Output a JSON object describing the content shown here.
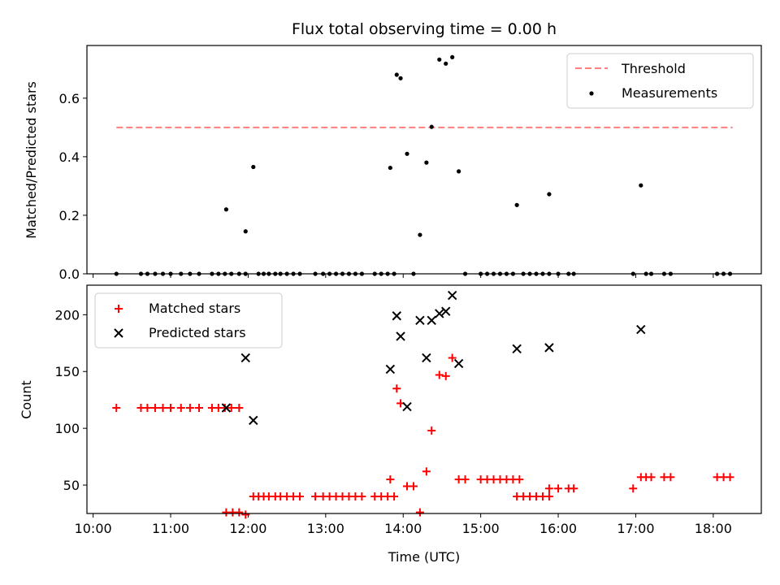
{
  "chart_data": [
    {
      "type": "scatter",
      "title": "Flux total observing time = 0.00 h",
      "ylabel": "Matched/Predicted stars",
      "ylim": [
        0,
        0.78
      ],
      "yticks": [
        0.0,
        0.2,
        0.4,
        0.6
      ],
      "ytick_labels": [
        "0.0",
        "0.2",
        "0.4",
        "0.6"
      ],
      "xlim_hours": [
        9.92,
        18.62
      ],
      "legend": "top-right",
      "threshold": {
        "name": "Threshold",
        "value": 0.5,
        "x_range": [
          "10:18",
          "18:15"
        ],
        "color": "#ff7f7f",
        "style": "dashed"
      },
      "measurements": {
        "name": "Measurements",
        "color": "#000000",
        "points": [
          [
            "10:18",
            0.0
          ],
          [
            "10:37",
            0.0
          ],
          [
            "10:42",
            0.0
          ],
          [
            "10:48",
            0.0
          ],
          [
            "10:54",
            0.0
          ],
          [
            "11:00",
            0.0
          ],
          [
            "11:08",
            0.0
          ],
          [
            "11:15",
            0.0
          ],
          [
            "11:22",
            0.0
          ],
          [
            "11:32",
            0.0
          ],
          [
            "11:37",
            0.0
          ],
          [
            "11:42",
            0.0
          ],
          [
            "11:47",
            0.0
          ],
          [
            "11:53",
            0.0
          ],
          [
            "11:58",
            0.0
          ],
          [
            "11:43",
            0.22
          ],
          [
            "11:58",
            0.145
          ],
          [
            "12:04",
            0.365
          ],
          [
            "12:08",
            0.0
          ],
          [
            "12:12",
            0.0
          ],
          [
            "12:16",
            0.0
          ],
          [
            "12:21",
            0.0
          ],
          [
            "12:25",
            0.0
          ],
          [
            "12:30",
            0.0
          ],
          [
            "12:35",
            0.0
          ],
          [
            "12:40",
            0.0
          ],
          [
            "12:52",
            0.0
          ],
          [
            "12:58",
            0.0
          ],
          [
            "13:03",
            0.0
          ],
          [
            "13:08",
            0.0
          ],
          [
            "13:13",
            0.0
          ],
          [
            "13:18",
            0.0
          ],
          [
            "13:23",
            0.0
          ],
          [
            "13:28",
            0.0
          ],
          [
            "13:38",
            0.0
          ],
          [
            "13:43",
            0.0
          ],
          [
            "13:48",
            0.0
          ],
          [
            "13:53",
            0.0
          ],
          [
            "13:50",
            0.362
          ],
          [
            "13:55",
            0.68
          ],
          [
            "13:58",
            0.668
          ],
          [
            "14:03",
            0.41
          ],
          [
            "14:08",
            0.0
          ],
          [
            "14:13",
            0.133
          ],
          [
            "14:18",
            0.38
          ],
          [
            "14:22",
            0.502
          ],
          [
            "14:28",
            0.732
          ],
          [
            "14:33",
            0.718
          ],
          [
            "14:38",
            0.74
          ],
          [
            "14:43",
            0.35
          ],
          [
            "14:48",
            0.0
          ],
          [
            "15:00",
            0.0
          ],
          [
            "15:05",
            0.0
          ],
          [
            "15:10",
            0.0
          ],
          [
            "15:15",
            0.0
          ],
          [
            "15:20",
            0.0
          ],
          [
            "15:25",
            0.0
          ],
          [
            "15:33",
            0.0
          ],
          [
            "15:38",
            0.0
          ],
          [
            "15:43",
            0.0
          ],
          [
            "15:48",
            0.0
          ],
          [
            "15:53",
            0.0
          ],
          [
            "16:00",
            0.0
          ],
          [
            "16:08",
            0.0
          ],
          [
            "16:12",
            0.0
          ],
          [
            "15:28",
            0.235
          ],
          [
            "15:53",
            0.272
          ],
          [
            "16:58",
            0.0
          ],
          [
            "17:04",
            0.302
          ],
          [
            "17:08",
            0.0
          ],
          [
            "17:12",
            0.0
          ],
          [
            "17:22",
            0.0
          ],
          [
            "17:27",
            0.0
          ],
          [
            "18:03",
            0.0
          ],
          [
            "18:08",
            0.0
          ],
          [
            "18:13",
            0.0
          ]
        ]
      }
    },
    {
      "type": "scatter",
      "xlabel": "Time (UTC)",
      "ylabel": "Count",
      "ylim": [
        25,
        226
      ],
      "yticks": [
        50,
        100,
        150,
        200
      ],
      "ytick_labels": [
        "50",
        "100",
        "150",
        "200"
      ],
      "xticks": [
        "10:00",
        "11:00",
        "12:00",
        "13:00",
        "14:00",
        "15:00",
        "16:00",
        "17:00",
        "18:00"
      ],
      "legend": "top-left",
      "series": [
        {
          "name": "Matched stars",
          "marker": "plus",
          "color": "#ff0000",
          "points": [
            [
              "10:18",
              118
            ],
            [
              "10:37",
              118
            ],
            [
              "10:42",
              118
            ],
            [
              "10:48",
              118
            ],
            [
              "10:54",
              118
            ],
            [
              "11:00",
              118
            ],
            [
              "11:08",
              118
            ],
            [
              "11:15",
              118
            ],
            [
              "11:22",
              118
            ],
            [
              "11:32",
              118
            ],
            [
              "11:37",
              118
            ],
            [
              "11:42",
              118
            ],
            [
              "11:47",
              118
            ],
            [
              "11:53",
              118
            ],
            [
              "11:43",
              26
            ],
            [
              "11:48",
              26
            ],
            [
              "11:53",
              26
            ],
            [
              "11:58",
              24
            ],
            [
              "12:04",
              40
            ],
            [
              "12:08",
              40
            ],
            [
              "12:12",
              40
            ],
            [
              "12:16",
              40
            ],
            [
              "12:21",
              40
            ],
            [
              "12:25",
              40
            ],
            [
              "12:30",
              40
            ],
            [
              "12:35",
              40
            ],
            [
              "12:40",
              40
            ],
            [
              "12:52",
              40
            ],
            [
              "12:58",
              40
            ],
            [
              "13:03",
              40
            ],
            [
              "13:08",
              40
            ],
            [
              "13:13",
              40
            ],
            [
              "13:18",
              40
            ],
            [
              "13:23",
              40
            ],
            [
              "13:28",
              40
            ],
            [
              "13:38",
              40
            ],
            [
              "13:43",
              40
            ],
            [
              "13:48",
              40
            ],
            [
              "13:53",
              40
            ],
            [
              "13:50",
              55
            ],
            [
              "13:55",
              135
            ],
            [
              "13:58",
              122
            ],
            [
              "14:03",
              49
            ],
            [
              "14:08",
              49
            ],
            [
              "14:13",
              26
            ],
            [
              "14:18",
              62
            ],
            [
              "14:22",
              98
            ],
            [
              "14:28",
              147
            ],
            [
              "14:33",
              146
            ],
            [
              "14:38",
              162
            ],
            [
              "14:43",
              55
            ],
            [
              "14:48",
              55
            ],
            [
              "15:00",
              55
            ],
            [
              "15:05",
              55
            ],
            [
              "15:10",
              55
            ],
            [
              "15:15",
              55
            ],
            [
              "15:20",
              55
            ],
            [
              "15:25",
              55
            ],
            [
              "15:30",
              55
            ],
            [
              "15:28",
              40
            ],
            [
              "15:33",
              40
            ],
            [
              "15:38",
              40
            ],
            [
              "15:43",
              40
            ],
            [
              "15:48",
              40
            ],
            [
              "15:53",
              40
            ],
            [
              "15:53",
              47
            ],
            [
              "16:00",
              47
            ],
            [
              "16:08",
              47
            ],
            [
              "16:12",
              47
            ],
            [
              "16:58",
              47
            ],
            [
              "17:04",
              57
            ],
            [
              "17:08",
              57
            ],
            [
              "17:12",
              57
            ],
            [
              "17:22",
              57
            ],
            [
              "17:27",
              57
            ],
            [
              "18:03",
              57
            ],
            [
              "18:08",
              57
            ],
            [
              "18:13",
              57
            ]
          ]
        },
        {
          "name": "Predicted stars",
          "marker": "x",
          "color": "#000000",
          "points": [
            [
              "11:43",
              118
            ],
            [
              "11:58",
              162
            ],
            [
              "12:04",
              107
            ],
            [
              "13:50",
              152
            ],
            [
              "13:55",
              199
            ],
            [
              "13:58",
              181
            ],
            [
              "14:03",
              119
            ],
            [
              "14:13",
              195
            ],
            [
              "14:18",
              162
            ],
            [
              "14:22",
              195
            ],
            [
              "14:28",
              201
            ],
            [
              "14:33",
              203
            ],
            [
              "14:38",
              217
            ],
            [
              "14:43",
              157
            ],
            [
              "15:28",
              170
            ],
            [
              "15:53",
              171
            ],
            [
              "17:04",
              187
            ]
          ]
        }
      ]
    }
  ]
}
